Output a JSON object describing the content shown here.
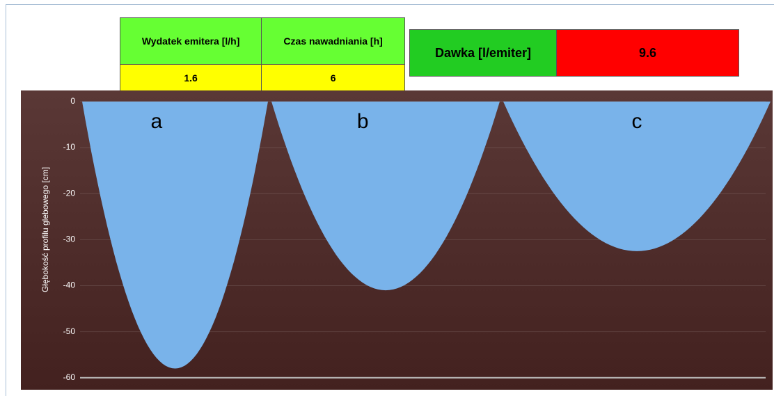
{
  "table": {
    "headers": [
      "Wydatek emitera [l/h]",
      "Czas nawadniania [h]"
    ],
    "rows": [
      [
        1.6,
        6
      ]
    ]
  },
  "dose": {
    "label": "Dawka [l/emiter]",
    "value": 9.6
  },
  "chart_data": {
    "type": "bulb",
    "y_label": "Głębokość profilu glebowego [cm]",
    "categories": [
      "a",
      "b",
      "c"
    ],
    "values": [
      -58,
      -41,
      -32.5
    ],
    "color": "#79b3ea",
    "ylim": [
      -62,
      1.5
    ],
    "yticks": [
      0,
      -10,
      -20,
      -30,
      -40,
      -50,
      -60
    ],
    "grid": true
  }
}
